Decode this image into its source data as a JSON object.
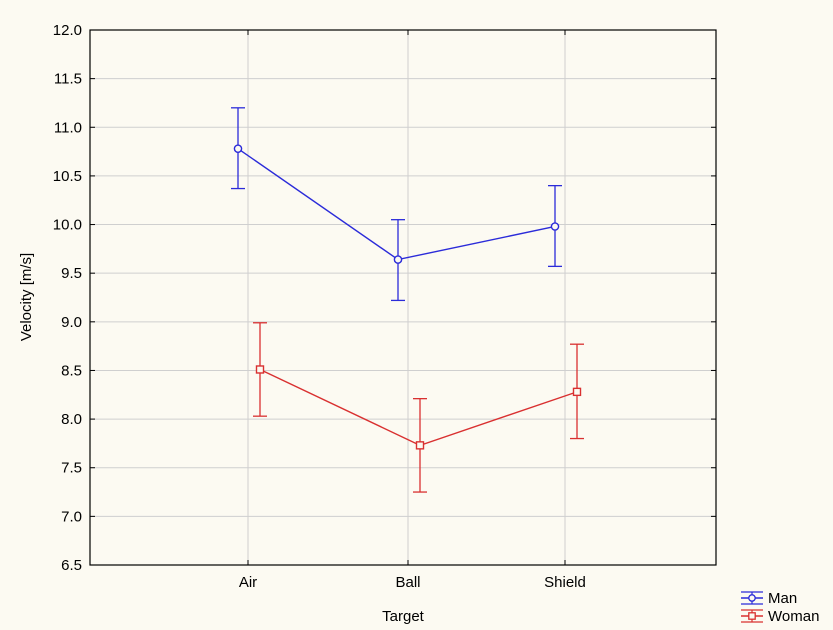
{
  "chart_data": {
    "type": "line",
    "categories": [
      "Air",
      "Ball",
      "Shield"
    ],
    "xlabel": "Target",
    "ylabel": "Velocity [m/s]",
    "ylim": [
      6.5,
      12.0
    ],
    "yticks": [
      "6.5",
      "7.0",
      "7.5",
      "8.0",
      "8.5",
      "9.0",
      "9.5",
      "10.0",
      "10.5",
      "11.0",
      "11.5",
      "12.0"
    ],
    "grid": true,
    "legend_position": "bottom-right",
    "series": [
      {
        "name": "Man",
        "color": "#2b2bd9",
        "marker": "circle",
        "values": [
          10.78,
          9.64,
          9.98
        ],
        "lower": [
          10.37,
          9.22,
          9.57
        ],
        "upper": [
          11.2,
          10.05,
          10.4
        ]
      },
      {
        "name": "Woman",
        "color": "#d93030",
        "marker": "square",
        "values": [
          8.51,
          7.73,
          8.28
        ],
        "lower": [
          8.03,
          7.25,
          7.8
        ],
        "upper": [
          8.99,
          8.21,
          8.77
        ]
      }
    ]
  }
}
